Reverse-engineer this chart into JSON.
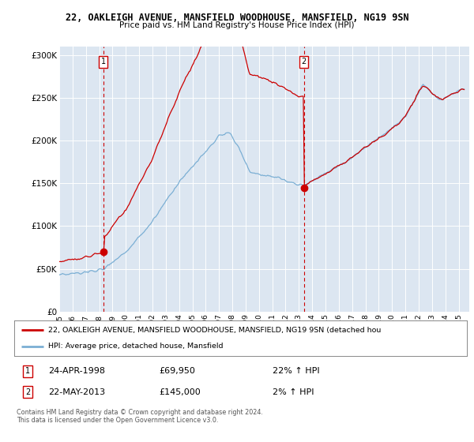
{
  "title_line1": "22, OAKLEIGH AVENUE, MANSFIELD WOODHOUSE, MANSFIELD, NG19 9SN",
  "title_line2": "Price paid vs. HM Land Registry's House Price Index (HPI)",
  "ylabel_ticks": [
    "£0",
    "£50K",
    "£100K",
    "£150K",
    "£200K",
    "£250K",
    "£300K"
  ],
  "ytick_vals": [
    0,
    50000,
    100000,
    150000,
    200000,
    250000,
    300000
  ],
  "ylim": [
    0,
    310000
  ],
  "xlim_start": 1995.0,
  "xlim_end": 2025.8,
  "xtick_years": [
    1995,
    1996,
    1997,
    1998,
    1999,
    2000,
    2001,
    2002,
    2003,
    2004,
    2005,
    2006,
    2007,
    2008,
    2009,
    2010,
    2011,
    2012,
    2013,
    2014,
    2015,
    2016,
    2017,
    2018,
    2019,
    2020,
    2021,
    2022,
    2023,
    2024,
    2025
  ],
  "hpi_color": "#7bafd4",
  "price_color": "#cc0000",
  "marker1_date": 1998.31,
  "marker1_price": 69950,
  "marker2_date": 2013.38,
  "marker2_price": 145000,
  "vline_color": "#cc0000",
  "plot_bg_color": "#dce6f1",
  "legend_label_red": "22, OAKLEIGH AVENUE, MANSFIELD WOODHOUSE, MANSFIELD, NG19 9SN (detached hou",
  "legend_label_blue": "HPI: Average price, detached house, Mansfield",
  "table_row1": [
    "1",
    "24-APR-1998",
    "£69,950",
    "22% ↑ HPI"
  ],
  "table_row2": [
    "2",
    "22-MAY-2013",
    "£145,000",
    "2% ↑ HPI"
  ],
  "footer_text": "Contains HM Land Registry data © Crown copyright and database right 2024.\nThis data is licensed under the Open Government Licence v3.0.",
  "grid_color": "#ffffff",
  "fig_width": 6.0,
  "fig_height": 5.6
}
